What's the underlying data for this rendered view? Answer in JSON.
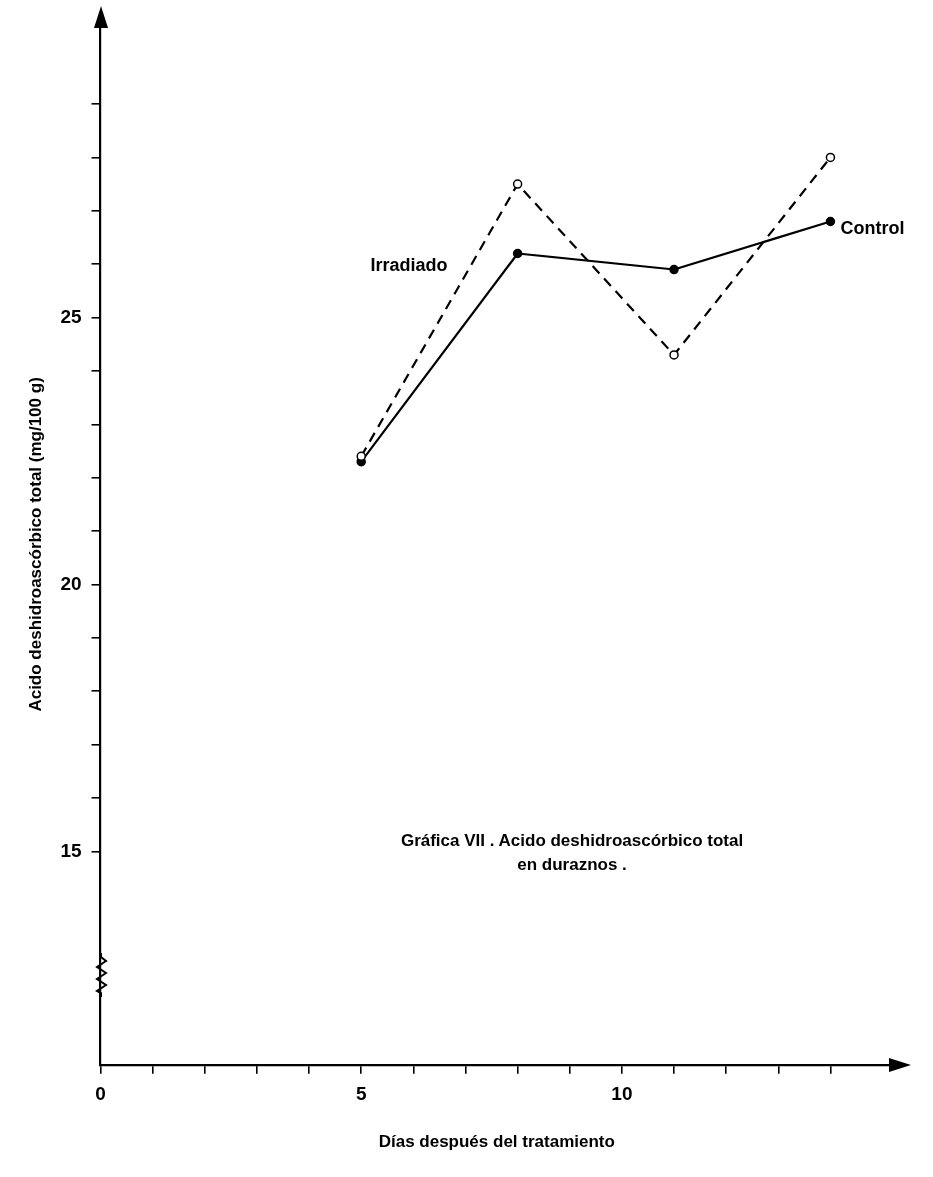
{
  "chart_data": {
    "type": "line",
    "xlabel": "Días después del tratamiento",
    "ylabel": "Acido deshidroascórbico total (mg/100 g)",
    "x": [
      5,
      8,
      11,
      14
    ],
    "series": [
      {
        "name": "Irradiado",
        "color": "#000000",
        "line_style": "dashed",
        "values": [
          22.4,
          27.5,
          24.3,
          28.0
        ]
      },
      {
        "name": "Control",
        "color": "#000000",
        "line_style": "solid",
        "values": [
          22.3,
          26.2,
          25.9,
          26.8
        ]
      }
    ],
    "xlim": [
      0,
      15.2
    ],
    "xticks": [
      0,
      {
        "value": 1,
        "label": null
      },
      {
        "value": 2,
        "label": null
      },
      {
        "value": 3,
        "label": null
      },
      {
        "value": 4,
        "label": null
      },
      5,
      {
        "value": 6,
        "label": null
      },
      {
        "value": 7,
        "label": null
      },
      {
        "value": 8,
        "label": null
      },
      {
        "value": 9,
        "label": null
      },
      10,
      {
        "value": 11,
        "label": null
      },
      {
        "value": 12,
        "label": null
      },
      {
        "value": 13,
        "label": null
      },
      {
        "value": 14,
        "label": null
      }
    ],
    "ylim": [
      11,
      30.5
    ],
    "yticks": [
      15,
      {
        "value": 16,
        "label": null
      },
      {
        "value": 17,
        "label": null
      },
      {
        "value": 18,
        "label": null
      },
      {
        "value": 19,
        "label": null
      },
      20,
      {
        "value": 21,
        "label": null
      },
      {
        "value": 22,
        "label": null
      },
      {
        "value": 23,
        "label": null
      },
      {
        "value": 24,
        "label": null
      },
      25,
      {
        "value": 26,
        "label": null
      },
      {
        "value": 27,
        "label": null
      },
      {
        "value": 28,
        "label": null
      },
      {
        "value": 29,
        "label": null
      }
    ],
    "grid": false,
    "legend": false,
    "marker": "circle",
    "annotations": [
      "Gráfica VII . Acido deshidroascórbico total\nen duraznos ."
    ]
  }
}
